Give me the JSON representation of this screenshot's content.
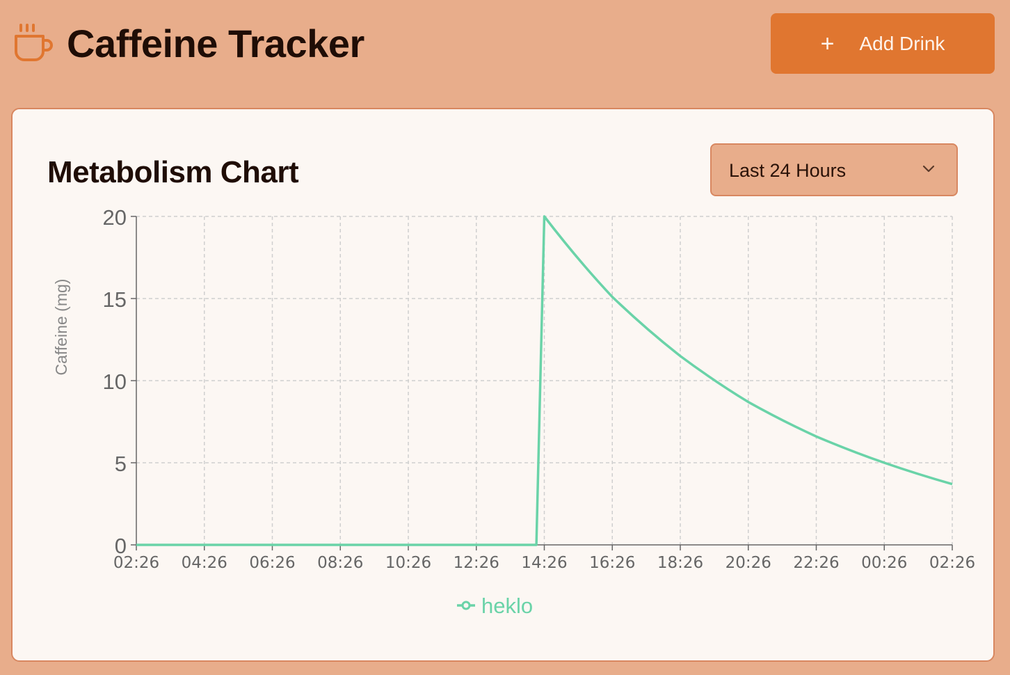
{
  "header": {
    "title": "Caffeine Tracker",
    "icon": "coffee-cup-icon",
    "add_button_label": "Add Drink",
    "add_icon": "plus-icon",
    "accent_color": "#e07630"
  },
  "chart_card": {
    "title": "Metabolism Chart",
    "range_select": {
      "selected": "Last 24 Hours",
      "icon": "chevron-down-icon"
    }
  },
  "chart_data": {
    "type": "line",
    "title": "",
    "xlabel": "",
    "ylabel": "Caffeine (mg)",
    "ylim": [
      0,
      20
    ],
    "yticks": [
      "0",
      "5",
      "10",
      "15",
      "20"
    ],
    "xticks": [
      "02:26",
      "04:26",
      "06:26",
      "08:26",
      "10:26",
      "12:26",
      "14:26",
      "16:26",
      "18:26",
      "20:26",
      "22:26",
      "00:26",
      "02:26"
    ],
    "grid": true,
    "legend_position": "bottom",
    "series": [
      {
        "name": "heklo",
        "color": "#6ad3a8",
        "points": [
          [
            "02:26",
            0
          ],
          [
            "14:12",
            0
          ],
          [
            "14:26",
            20
          ],
          [
            "16:26",
            15.1
          ],
          [
            "18:26",
            11.5
          ],
          [
            "20:26",
            8.7
          ],
          [
            "22:26",
            6.6
          ],
          [
            "00:26",
            5.0
          ],
          [
            "02:26",
            3.7
          ]
        ]
      }
    ]
  }
}
